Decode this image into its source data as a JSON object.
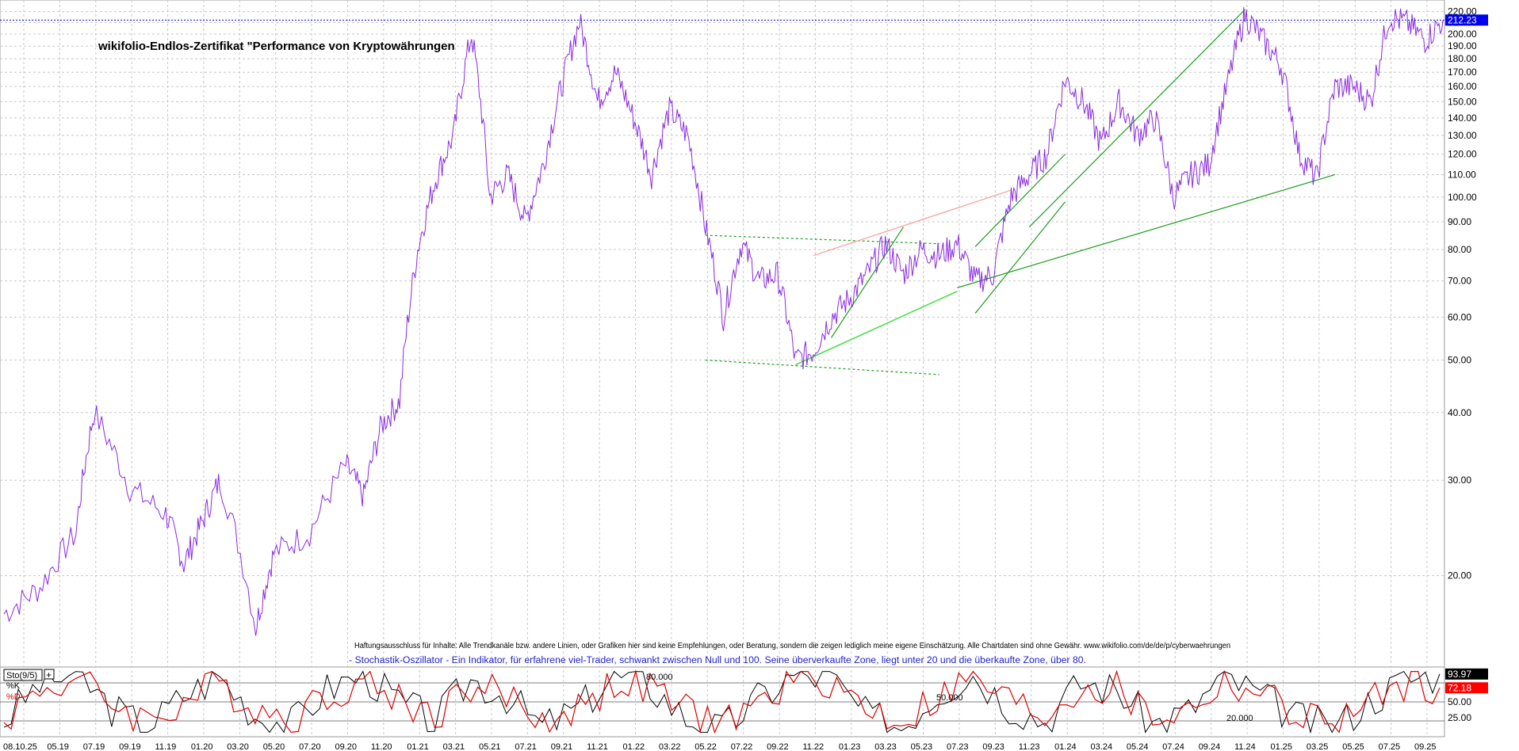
{
  "header": {
    "title": "wikifolio-Endlos-Zertifikat \"Performance von Kryptowährungen"
  },
  "disclaimer": "Haftungsausschluss für Inhalte: Alle Trendkanäle bzw. andere Linien, oder Grafiken hier sind keine Empfehlungen, oder Beratung, sondern die zeigen lediglich meine eigene Einschätzung. Alle Chartdaten sind ohne Gewähr. www.wikifolio.com/de/de/p/cyberwaehrungen",
  "indicator_note": "- Stochastik-Oszillator - Ein Indikator, für erfahrene viel-Trader, schwankt zwischen Null und 100. Seine überverkaufte Zone, liegt unter 20 und die überkaufte Zone, über 80.",
  "colors": {
    "price_line": "#8a2be2",
    "grid": "#c8c8c8",
    "trend_green": "#1a9e1a",
    "trend_light_green": "#44dd44",
    "trend_red": "#ff9999",
    "last_price_box": "#0000ee",
    "stoch_k": "#000000",
    "stoch_d": "#dd0000"
  },
  "chart_data": [
    {
      "type": "line",
      "title": "wikifolio-Endlos-Zertifikat \"Performance von Kryptowährungen",
      "xlabel": "",
      "ylabel": "",
      "y_scale": "log",
      "ylim": [
        15,
        225
      ],
      "y_ticks": [
        "20.00",
        "30.00",
        "40.00",
        "50.00",
        "60.00",
        "70.00",
        "80.00",
        "90.00",
        "100.00",
        "110.00",
        "120.00",
        "130.00",
        "140.00",
        "150.00",
        "160.00",
        "170.00",
        "180.00",
        "190.00",
        "200.00",
        "210.00",
        "220.00"
      ],
      "x_tick_labels": [
        "08.10.25",
        "05.19",
        "07.19",
        "09.19",
        "11.19",
        "01.20",
        "03.20",
        "05.20",
        "07.20",
        "09.20",
        "11.20",
        "01.21",
        "03.21",
        "05.21",
        "07.21",
        "09.21",
        "11.21",
        "01.22",
        "03.22",
        "05.22",
        "07.22",
        "09.22",
        "11.22",
        "01.23",
        "03.23",
        "05.23",
        "07.23",
        "09.23",
        "11.23",
        "01.24",
        "03.24",
        "05.24",
        "07.24",
        "09.24",
        "11.24",
        "01.25",
        "03.25",
        "05.25",
        "07.25",
        "09.25"
      ],
      "last_price": "212.23",
      "grid": true,
      "series": [
        {
          "x": [
            "2019-03",
            "2019-05",
            "2019-07",
            "2019-08",
            "2019-10",
            "2019-12",
            "2020-01",
            "2020-02",
            "2020-03",
            "2020-05",
            "2020-06",
            "2020-08",
            "2020-10",
            "2020-11",
            "2020-12",
            "2021-01",
            "2021-02",
            "2021-03",
            "2021-04",
            "2021-05",
            "2021-06",
            "2021-07",
            "2021-08",
            "2021-09",
            "2021-10",
            "2021-11",
            "2021-12",
            "2022-01",
            "2022-02",
            "2022-03",
            "2022-04",
            "2022-05",
            "2022-06",
            "2022-07",
            "2022-08",
            "2022-09",
            "2022-10",
            "2022-11",
            "2022-12",
            "2023-01",
            "2023-02",
            "2023-03",
            "2023-04",
            "2023-05",
            "2023-06",
            "2023-07",
            "2023-08",
            "2023-09",
            "2023-10",
            "2023-11",
            "2023-12",
            "2024-01",
            "2024-02",
            "2024-03",
            "2024-04",
            "2024-05",
            "2024-06",
            "2024-07",
            "2024-08",
            "2024-09",
            "2024-10",
            "2024-11",
            "2024-12",
            "2025-01",
            "2025-02",
            "2025-03",
            "2025-04",
            "2025-05",
            "2025-06",
            "2025-07",
            "2025-08",
            "2025-09",
            "2025-10",
            "2025-11"
          ],
          "values": [
            17,
            19,
            24,
            40,
            29,
            26,
            21,
            25,
            30,
            16,
            22,
            24,
            32,
            28,
            38,
            42,
            80,
            108,
            130,
            200,
            100,
            110,
            90,
            115,
            160,
            211,
            150,
            170,
            140,
            110,
            145,
            130,
            88,
            60,
            82,
            70,
            72,
            50,
            52,
            60,
            65,
            72,
            82,
            72,
            80,
            78,
            82,
            70,
            72,
            100,
            110,
            120,
            165,
            150,
            125,
            150,
            130,
            140,
            100,
            110,
            115,
            160,
            217,
            195,
            175,
            120,
            108,
            160,
            160,
            150,
            215,
            210,
            195,
            212.23
          ]
        }
      ],
      "trendlines": [
        {
          "color": "green",
          "from": [
            "2023-12",
            88
          ],
          "to": [
            "2024-12",
            222
          ]
        },
        {
          "color": "green",
          "from": [
            "2023-08",
            68
          ],
          "to": [
            "2025-05",
            110
          ]
        },
        {
          "color": "light-green",
          "from": [
            "2022-11",
            49
          ],
          "to": [
            "2023-08",
            67
          ]
        },
        {
          "color": "dashed-green",
          "from": [
            "2022-06",
            85
          ],
          "to": [
            "2023-07",
            82
          ]
        },
        {
          "color": "dashed-green",
          "from": [
            "2022-06",
            50
          ],
          "to": [
            "2023-07",
            47
          ]
        },
        {
          "color": "red",
          "from": [
            "2022-12",
            78
          ],
          "to": [
            "2023-11",
            103
          ]
        },
        {
          "color": "green",
          "from": [
            "2023-01",
            55
          ],
          "to": [
            "2023-05",
            88
          ]
        },
        {
          "color": "green",
          "from": [
            "2023-09",
            81
          ],
          "to": [
            "2024-02",
            120
          ]
        },
        {
          "color": "green",
          "from": [
            "2023-09",
            61
          ],
          "to": [
            "2024-02",
            98
          ]
        }
      ]
    },
    {
      "type": "line",
      "title": "",
      "legend_label": "Sto(9/5)",
      "ylim": [
        0,
        100
      ],
      "y_ticks": [
        "25.00",
        "50.00"
      ],
      "level_labels": [
        "80.000",
        "50.000",
        "20.000"
      ],
      "latest_values": [
        "93.97",
        "72.18"
      ],
      "series": [
        {
          "name": "%K",
          "values": [
            20,
            80,
            95,
            40,
            10,
            60,
            90,
            30,
            15,
            70,
            95,
            50,
            20,
            85,
            60,
            10,
            40,
            90,
            75,
            25,
            5,
            55,
            92,
            88,
            30,
            12,
            65,
            95,
            45,
            20,
            80,
            70,
            15,
            35,
            90,
            60,
            25,
            8,
            50,
            85,
            93.97
          ]
        },
        {
          "name": "%D",
          "values": [
            25,
            70,
            85,
            50,
            20,
            50,
            80,
            40,
            25,
            60,
            85,
            55,
            30,
            75,
            60,
            20,
            40,
            80,
            72,
            35,
            15,
            45,
            85,
            85,
            40,
            20,
            55,
            88,
            50,
            28,
            72,
            68,
            25,
            35,
            82,
            62,
            30,
            15,
            45,
            78,
            72.18
          ]
        }
      ]
    }
  ]
}
